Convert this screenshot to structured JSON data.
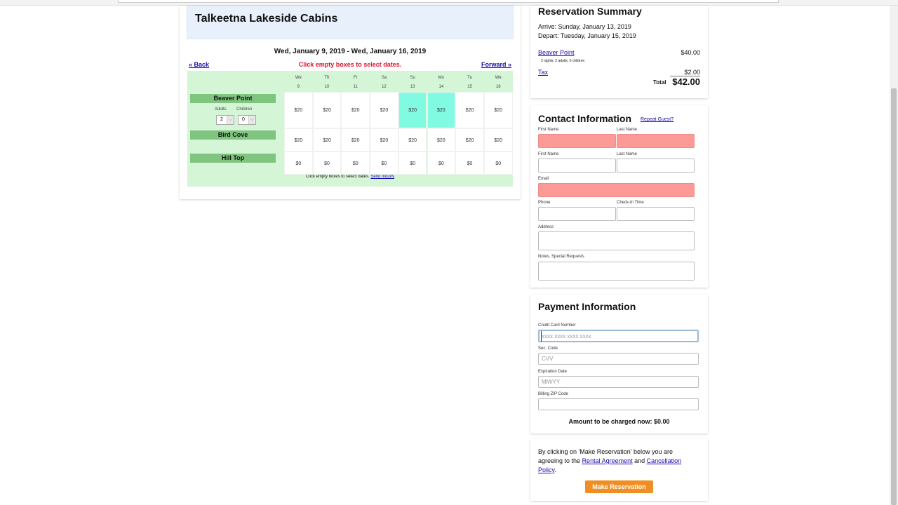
{
  "property": {
    "name": "Talkeetna Lakeside Cabins"
  },
  "calendar": {
    "range": "Wed, January 9, 2019 - Wed, January 16, 2019",
    "back": "« Back",
    "forward": "Forward »",
    "hint": "Click empty boxes to select dates.",
    "days": [
      {
        "dow": "We",
        "d": "9"
      },
      {
        "dow": "Th",
        "d": "10"
      },
      {
        "dow": "Fr",
        "d": "11"
      },
      {
        "dow": "Sa",
        "d": "12"
      },
      {
        "dow": "Su",
        "d": "13"
      },
      {
        "dow": "Mo",
        "d": "14"
      },
      {
        "dow": "Tu",
        "d": "15"
      },
      {
        "dow": "We",
        "d": "16"
      }
    ],
    "units": [
      {
        "name": "Beaver Point",
        "prices": [
          "$20",
          "$20",
          "$20",
          "$20",
          "$20",
          "$20",
          "$20",
          "$20"
        ],
        "selected": [
          4,
          5
        ],
        "adults_label": "Adults",
        "children_label": "Children",
        "adults": "2",
        "children": "0"
      },
      {
        "name": "Bird Cove",
        "prices": [
          "$20",
          "$20",
          "$20",
          "$20",
          "$20",
          "$20",
          "$20",
          "$20"
        ]
      },
      {
        "name": "Hill Top",
        "prices": [
          "$0",
          "$0",
          "$0",
          "$0",
          "$0",
          "$0",
          "$0",
          "$0"
        ]
      }
    ],
    "footer_text": "Click empty boxes to select dates.",
    "footer_link": "Send Inquiry"
  },
  "summary": {
    "title": "Reservation Summary",
    "arrive": "Arrive: Sunday, January 13, 2019",
    "depart": "Depart: Tuesday, January 15, 2019",
    "item": "Beaver Point",
    "item_price": "$40.00",
    "item_detail": "2 nights; 2 adults, 0 children",
    "tax": "Tax",
    "tax_price": "$2.00",
    "total_label": "Total",
    "total": "$42.00"
  },
  "contact": {
    "title": "Contact Information",
    "repeat": "Repeat Guest?",
    "first": "First Name",
    "last": "Last Name",
    "email": "Email",
    "phone": "Phone",
    "checkin": "Check-In Time",
    "address": "Address",
    "notes": "Notes, Special Requests"
  },
  "payment": {
    "title": "Payment Information",
    "cc_label": "Credit Card Number",
    "cc_ph": "xxxx xxxx xxxx xxxx",
    "sec_label": "Sec. Code",
    "sec_ph": "CVV",
    "exp_label": "Expiration Date",
    "exp_ph": "MM/YY",
    "zip_label": "Billing ZIP Code",
    "charge": "Amount to be charged now: $0.00"
  },
  "agree": {
    "t1": "By clicking on 'Make Reservation' below you are agreeing to the ",
    "rental": "Rental Agreement",
    "and": " and ",
    "cancel": "Cancellation Policy",
    "end": ".",
    "button": "Make Reservation"
  }
}
